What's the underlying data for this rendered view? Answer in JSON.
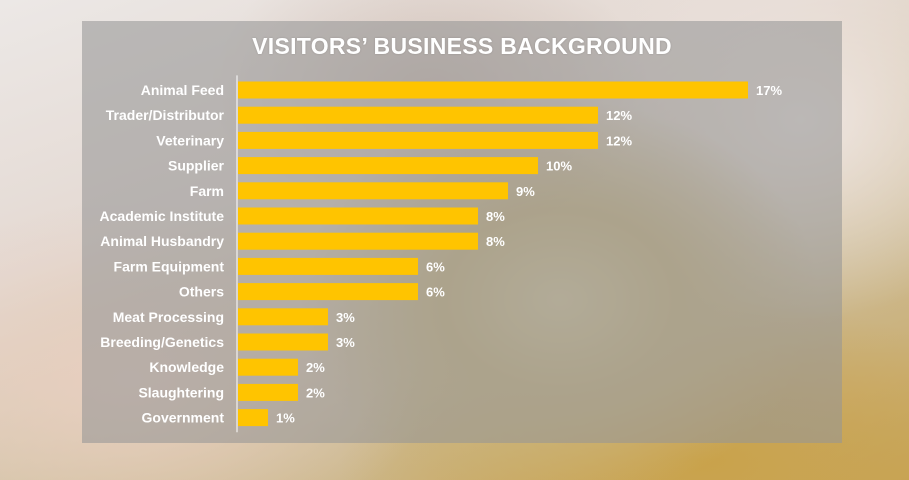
{
  "chart_data": {
    "type": "bar",
    "orientation": "horizontal",
    "title": "VISITORS’ BUSINESS BACKGROUND",
    "categories": [
      "Animal Feed",
      "Trader/Distributor",
      "Veterinary",
      "Supplier",
      "Farm",
      "Academic Institute",
      "Animal Husbandry",
      "Farm Equipment",
      "Others",
      "Meat Processing",
      "Breeding/Genetics",
      "Knowledge",
      "Slaughtering",
      "Government"
    ],
    "values": [
      17,
      12,
      12,
      10,
      9,
      8,
      8,
      6,
      6,
      3,
      3,
      2,
      2,
      1
    ],
    "value_labels": [
      "17%",
      "12%",
      "12%",
      "10%",
      "9%",
      "8%",
      "8%",
      "6%",
      "6%",
      "3%",
      "3%",
      "2%",
      "2%",
      "1%"
    ],
    "xlabel": "",
    "ylabel": "",
    "bar_color": "#ffc400",
    "grid": false,
    "legend": "none"
  }
}
